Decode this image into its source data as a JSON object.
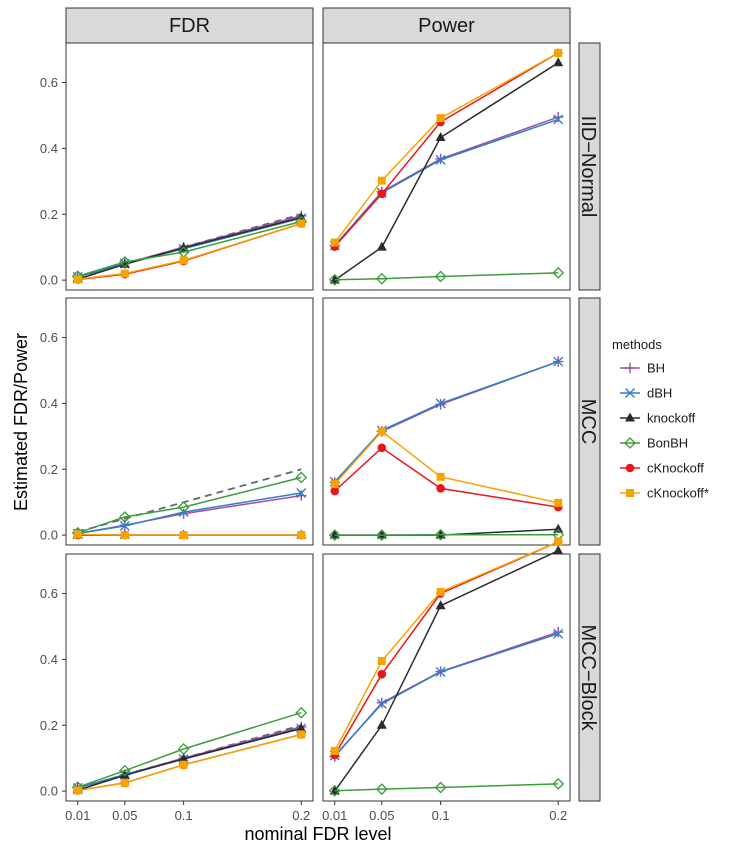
{
  "figure": {
    "xlabel": "nominal FDR level",
    "ylabel": "Estimated FDR/Power",
    "col_strips": [
      "FDR",
      "Power"
    ],
    "row_strips": [
      "IID−Normal",
      "MCC",
      "MCC−Block"
    ],
    "x_tick_labels": [
      "0.01",
      "0.05",
      "0.1",
      "0.2"
    ],
    "y_tick_labels": [
      "0.0",
      "0.2",
      "0.4",
      "0.6"
    ],
    "legend": {
      "title": "methods",
      "placement": "right",
      "entries": [
        "BH",
        "dBH",
        "knockoff",
        "BonBH",
        "cKnockoff",
        "cKnockoff*"
      ]
    }
  },
  "colors": {
    "BH": "#9e4fa5",
    "dBH": "#2f7fc8",
    "knockoff": "#2b2b2b",
    "BonBH": "#3a9d3a",
    "cKnockoff": "#e8151b",
    "cKnockoff*": "#f6a400",
    "reference": "#666666"
  },
  "chart_data": {
    "type": "line",
    "facet_rows": [
      "IID−Normal",
      "MCC",
      "MCC−Block"
    ],
    "facet_cols": [
      "FDR",
      "Power"
    ],
    "x": [
      0.01,
      0.05,
      0.1,
      0.2
    ],
    "xlim": [
      0.0,
      0.21
    ],
    "ylim": [
      -0.03,
      0.72
    ],
    "reference_line": {
      "style": "dashed",
      "panels": "FDR",
      "x": [
        0.01,
        0.05,
        0.1,
        0.2
      ],
      "y": [
        0.01,
        0.05,
        0.1,
        0.2
      ]
    },
    "markers": {
      "BH": "plus",
      "dBH": "cross",
      "knockoff": "triangle",
      "BonBH": "diamond-open",
      "cKnockoff": "circle",
      "cKnockoff*": "square"
    },
    "panels": [
      {
        "row": 0,
        "col": 0,
        "series": [
          {
            "name": "BH",
            "values": [
              0.01,
              0.05,
              0.1,
              0.195
            ]
          },
          {
            "name": "dBH",
            "values": [
              0.01,
              0.05,
              0.095,
              0.188
            ]
          },
          {
            "name": "knockoff",
            "values": [
              0.003,
              0.048,
              0.098,
              0.19
            ]
          },
          {
            "name": "BonBH",
            "values": [
              0.012,
              0.055,
              0.085,
              0.178
            ]
          },
          {
            "name": "cKnockoff",
            "values": [
              0.002,
              0.018,
              0.058,
              0.172
            ]
          },
          {
            "name": "cKnockoff*",
            "values": [
              0.003,
              0.02,
              0.06,
              0.172
            ]
          }
        ]
      },
      {
        "row": 0,
        "col": 1,
        "series": [
          {
            "name": "BH",
            "values": [
              0.105,
              0.268,
              0.368,
              0.495
            ]
          },
          {
            "name": "dBH",
            "values": [
              0.105,
              0.265,
              0.365,
              0.488
            ]
          },
          {
            "name": "knockoff",
            "values": [
              0.0,
              0.1,
              0.433,
              0.66
            ]
          },
          {
            "name": "BonBH",
            "values": [
              0.001,
              0.004,
              0.011,
              0.022
            ]
          },
          {
            "name": "cKnockoff",
            "values": [
              0.102,
              0.262,
              0.48,
              0.69
            ]
          },
          {
            "name": "cKnockoff*",
            "values": [
              0.114,
              0.302,
              0.492,
              0.69
            ]
          }
        ]
      },
      {
        "row": 1,
        "col": 0,
        "series": [
          {
            "name": "BH",
            "values": [
              0.005,
              0.03,
              0.065,
              0.12
            ]
          },
          {
            "name": "dBH",
            "values": [
              0.005,
              0.028,
              0.07,
              0.128
            ]
          },
          {
            "name": "knockoff",
            "values": [
              0.0,
              0.0,
              0.0,
              0.0
            ]
          },
          {
            "name": "BonBH",
            "values": [
              0.007,
              0.055,
              0.085,
              0.175
            ]
          },
          {
            "name": "cKnockoff",
            "values": [
              0.0,
              0.0,
              0.0,
              0.0
            ]
          },
          {
            "name": "cKnockoff*",
            "values": [
              0.002,
              0.0,
              0.0,
              0.0
            ]
          }
        ]
      },
      {
        "row": 1,
        "col": 1,
        "series": [
          {
            "name": "BH",
            "values": [
              0.16,
              0.315,
              0.397,
              0.527
            ]
          },
          {
            "name": "dBH",
            "values": [
              0.162,
              0.318,
              0.4,
              0.527
            ]
          },
          {
            "name": "knockoff",
            "values": [
              0.0,
              0.0,
              0.0,
              0.018
            ]
          },
          {
            "name": "BonBH",
            "values": [
              0.0,
              0.0,
              0.001,
              0.001
            ]
          },
          {
            "name": "cKnockoff",
            "values": [
              0.134,
              0.265,
              0.142,
              0.085
            ]
          },
          {
            "name": "cKnockoff*",
            "values": [
              0.155,
              0.315,
              0.177,
              0.098
            ]
          }
        ]
      },
      {
        "row": 2,
        "col": 0,
        "series": [
          {
            "name": "BH",
            "values": [
              0.01,
              0.05,
              0.1,
              0.195
            ]
          },
          {
            "name": "dBH",
            "values": [
              0.01,
              0.05,
              0.097,
              0.19
            ]
          },
          {
            "name": "knockoff",
            "values": [
              0.003,
              0.048,
              0.098,
              0.19
            ]
          },
          {
            "name": "BonBH",
            "values": [
              0.012,
              0.062,
              0.128,
              0.238
            ]
          },
          {
            "name": "cKnockoff",
            "values": [
              0.002,
              0.025,
              0.08,
              0.172
            ]
          },
          {
            "name": "cKnockoff*",
            "values": [
              0.002,
              0.025,
              0.08,
              0.172
            ]
          }
        ]
      },
      {
        "row": 2,
        "col": 1,
        "series": [
          {
            "name": "BH",
            "values": [
              0.105,
              0.268,
              0.363,
              0.483
            ]
          },
          {
            "name": "dBH",
            "values": [
              0.108,
              0.265,
              0.362,
              0.478
            ]
          },
          {
            "name": "knockoff",
            "values": [
              0.0,
              0.2,
              0.563,
              0.73
            ]
          },
          {
            "name": "BonBH",
            "values": [
              0.001,
              0.006,
              0.011,
              0.022
            ]
          },
          {
            "name": "cKnockoff",
            "values": [
              0.11,
              0.355,
              0.6,
              0.757
            ]
          },
          {
            "name": "cKnockoff*",
            "values": [
              0.122,
              0.395,
              0.605,
              0.757
            ]
          }
        ]
      }
    ]
  }
}
